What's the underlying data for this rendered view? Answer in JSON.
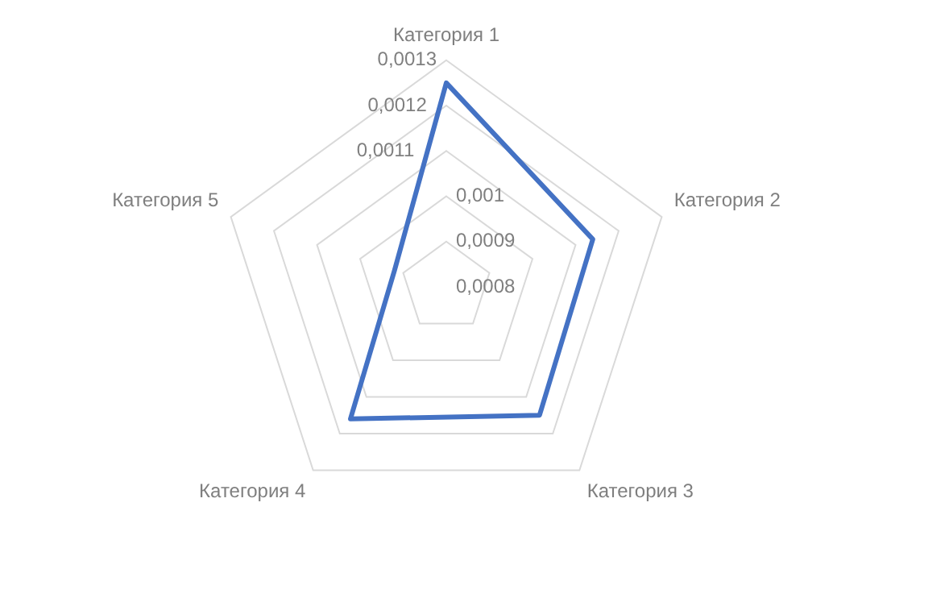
{
  "chart_data": {
    "type": "radar",
    "categories": [
      "Категория 1",
      "Категория 2",
      "Категория 3",
      "Категория 4",
      "Категория 5"
    ],
    "series": [
      {
        "color": "#4472c4",
        "values": [
          0.00125,
          0.00114,
          0.00115,
          0.00116,
          0.00092
        ]
      }
    ],
    "ylim": [
      0.0008,
      0.0013
    ],
    "yticks": [
      {
        "value": 0.0008,
        "label": "0,0008"
      },
      {
        "value": 0.0009,
        "label": "0,0009"
      },
      {
        "value": 0.001,
        "label": "0,001"
      },
      {
        "value": 0.0011,
        "label": "0,0011"
      },
      {
        "value": 0.0012,
        "label": "0,0012"
      },
      {
        "value": 0.0013,
        "label": "0,0013"
      }
    ],
    "grid": true,
    "legend": false,
    "marker": "none"
  }
}
